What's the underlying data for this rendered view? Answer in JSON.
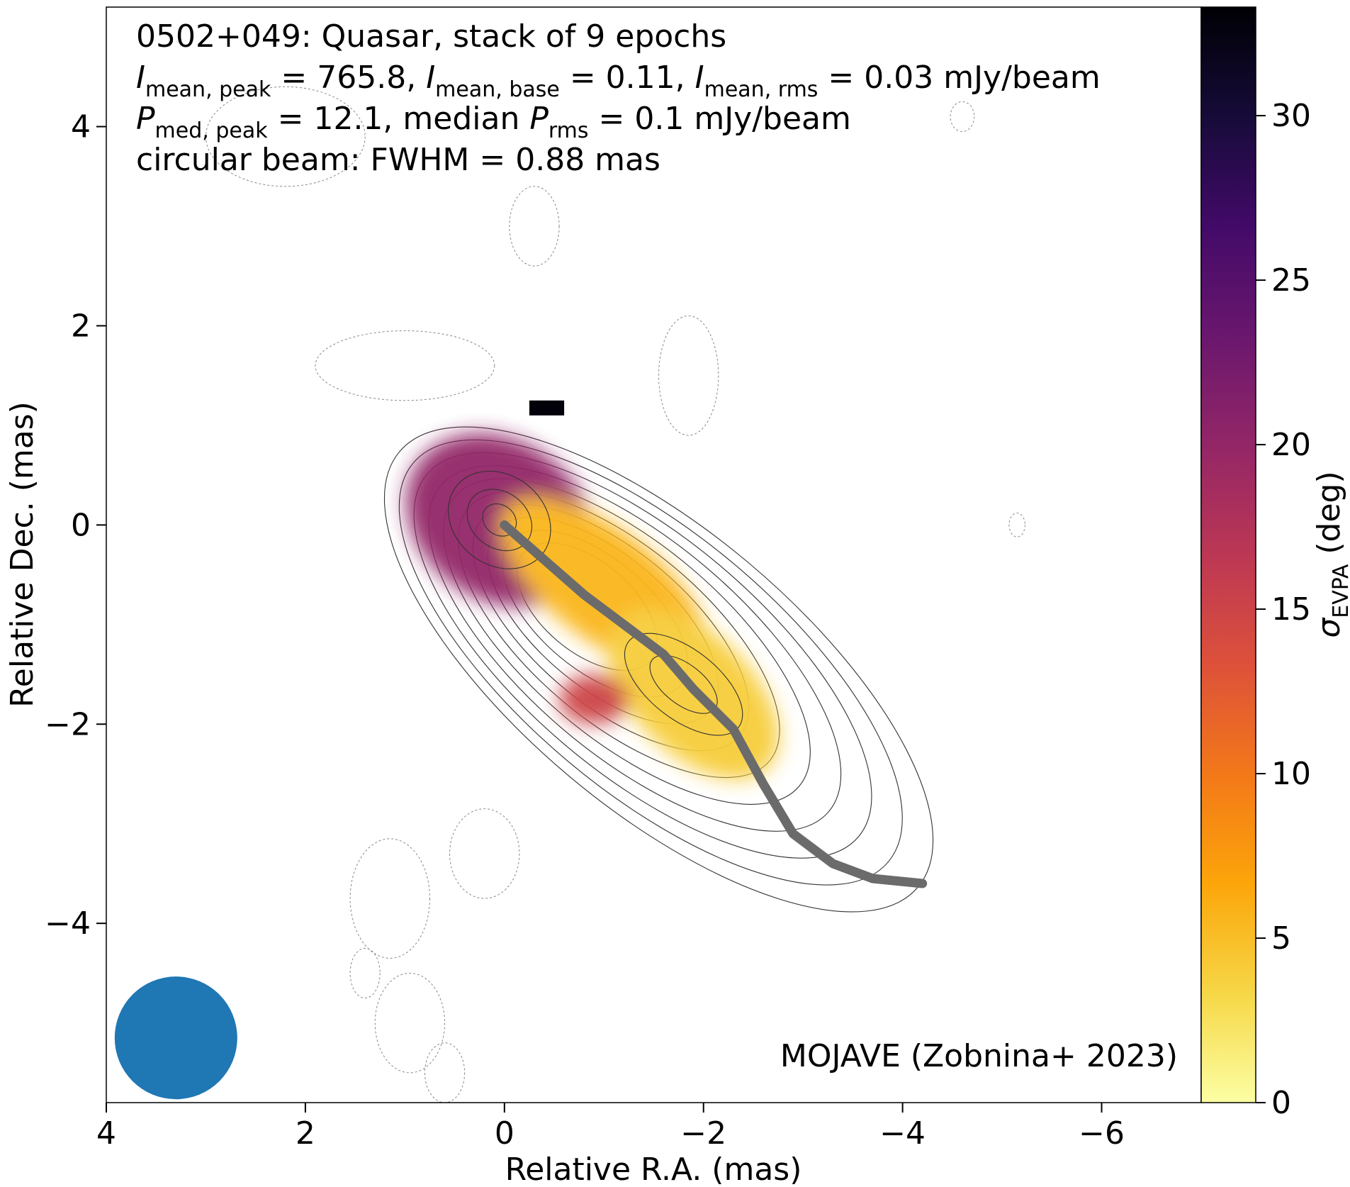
{
  "chart_data": {
    "type": "heatmap",
    "annotations": {
      "line1": "0502+049: Quasar, stack of 9 epochs",
      "line2": {
        "i1_sym": "I",
        "i1_sub": "mean, peak",
        "i1_val": " = 765.8, ",
        "i2_sym": "I",
        "i2_sub": "mean, base",
        "i2_val": " = 0.11, ",
        "i3_sym": "I",
        "i3_sub": "mean, rms",
        "i3_val": " = 0.03 mJy/beam"
      },
      "line3": {
        "p1_sym": "P",
        "p1_sub": "med, peak",
        "p1_val": " = 12.1, median ",
        "p2_sym": "P",
        "p2_sub": "rms",
        "p2_val": " = 0.1 mJy/beam"
      },
      "line4": "circular beam: FWHM = 0.88 mas",
      "credit": "MOJAVE (Zobnina+ 2023)"
    },
    "xlabel": "Relative R.A. (mas)",
    "ylabel": "Relative Dec. (mas)",
    "xlim": [
      4.0,
      -7.0
    ],
    "ylim": [
      -5.8,
      5.2
    ],
    "xticks": [
      {
        "v": 4,
        "label": "4"
      },
      {
        "v": 2,
        "label": "2"
      },
      {
        "v": 0,
        "label": "0"
      },
      {
        "v": -2,
        "label": "−2"
      },
      {
        "v": -4,
        "label": "−4"
      },
      {
        "v": -6,
        "label": "−6"
      }
    ],
    "yticks": [
      {
        "v": 4,
        "label": "4"
      },
      {
        "v": 2,
        "label": "2"
      },
      {
        "v": 0,
        "label": "0"
      },
      {
        "v": -2,
        "label": "−2"
      },
      {
        "v": -4,
        "label": "−4"
      }
    ],
    "colorbar": {
      "label_sym": "σ",
      "label_sub": "EVPA",
      "label_unit": " (deg)",
      "range": [
        0,
        33.3
      ],
      "colormap": "inferno_r",
      "ticks": [
        {
          "v": 0,
          "label": "0"
        },
        {
          "v": 5,
          "label": "5"
        },
        {
          "v": 10,
          "label": "10"
        },
        {
          "v": 15,
          "label": "15"
        },
        {
          "v": 20,
          "label": "20"
        },
        {
          "v": 25,
          "label": "25"
        },
        {
          "v": 30,
          "label": "30"
        }
      ]
    },
    "heatmap_blobs": [
      {
        "x": 0.05,
        "y": 0.05,
        "rx": 1.0,
        "ry": 0.8,
        "angle": -35,
        "value": 20
      },
      {
        "x": -1.0,
        "y": -0.6,
        "rx": 1.25,
        "ry": 0.55,
        "angle": -38,
        "value": 5.5
      },
      {
        "x": -1.9,
        "y": -1.7,
        "rx": 1.05,
        "ry": 0.6,
        "angle": -45,
        "value": 4
      },
      {
        "x": -0.9,
        "y": -1.75,
        "rx": 0.35,
        "ry": 0.25,
        "angle": 0,
        "value": 15
      }
    ],
    "saturated_pixels": {
      "value": 33,
      "x": [
        -0.25,
        -0.6
      ],
      "y": [
        0.95,
        1.25
      ]
    },
    "ridge_line": {
      "color": "#6b6b6b",
      "x": [
        0.0,
        -0.4,
        -0.8,
        -1.2,
        -1.6,
        -1.9,
        -2.3,
        -2.6,
        -2.9,
        -3.3,
        -3.7,
        -4.2
      ],
      "y": [
        0.0,
        -0.35,
        -0.7,
        -1.0,
        -1.3,
        -1.65,
        -2.05,
        -2.6,
        -3.1,
        -3.4,
        -3.55,
        -3.6
      ]
    },
    "contour_levels": 10,
    "beam": {
      "x": 3.3,
      "y": -5.15,
      "fwhm": 0.88,
      "color": "#1f77b4"
    }
  }
}
